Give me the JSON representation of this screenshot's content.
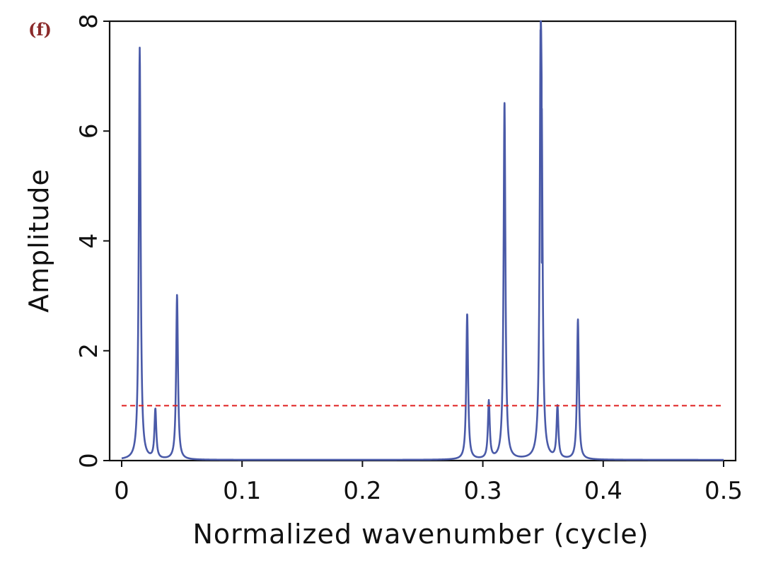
{
  "panel_label": "(f)",
  "chart_data": {
    "type": "line",
    "xlabel": "Normalized wavenumber (cycle)",
    "ylabel": "Amplitude",
    "xlim": [
      0,
      0.5
    ],
    "ylim": [
      0,
      8
    ],
    "xticks": [
      0,
      0.1,
      0.2,
      0.3,
      0.4,
      0.5
    ],
    "xtick_labels": [
      "0",
      "0.1",
      "0.2",
      "0.3",
      "0.4",
      "0.5"
    ],
    "yticks": [
      0,
      2,
      4,
      6,
      8
    ],
    "ytick_labels": [
      "0",
      "2",
      "4",
      "6",
      "8"
    ],
    "grid": false,
    "legend": "none",
    "series_color": "#4a5aa8",
    "threshold_color": "#e02020",
    "threshold": 1.0,
    "peaks": [
      {
        "x": 0.015,
        "y": 7.5
      },
      {
        "x": 0.028,
        "y": 0.9
      },
      {
        "x": 0.046,
        "y": 3.0
      },
      {
        "x": 0.287,
        "y": 2.65
      },
      {
        "x": 0.305,
        "y": 1.05
      },
      {
        "x": 0.318,
        "y": 6.5
      },
      {
        "x": 0.348,
        "y": 6.5
      },
      {
        "x": 0.349,
        "y": 3.6
      },
      {
        "x": 0.362,
        "y": 0.95
      },
      {
        "x": 0.379,
        "y": 2.55
      }
    ]
  }
}
